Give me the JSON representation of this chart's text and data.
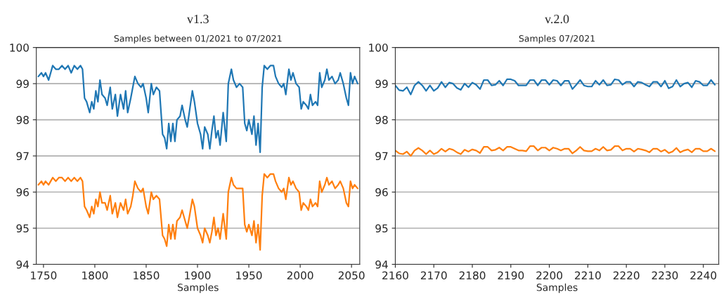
{
  "chart_data": [
    {
      "type": "line",
      "title": "v1.3",
      "subtitle": "Samples between 01/2021 to 07/2021",
      "xlabel": "Samples",
      "x": [
        1745,
        1748,
        1750,
        1752,
        1755,
        1757,
        1759,
        1762,
        1765,
        1768,
        1771,
        1774,
        1777,
        1780,
        1783,
        1786,
        1788,
        1790,
        1792,
        1795,
        1797,
        1799,
        1801,
        1803,
        1805,
        1807,
        1810,
        1812,
        1815,
        1817,
        1820,
        1822,
        1825,
        1828,
        1830,
        1832,
        1835,
        1837,
        1839,
        1842,
        1845,
        1847,
        1850,
        1852,
        1855,
        1857,
        1860,
        1863,
        1866,
        1868,
        1870,
        1872,
        1874,
        1876,
        1878,
        1880,
        1883,
        1885,
        1888,
        1890,
        1892,
        1895,
        1897,
        1900,
        1903,
        1905,
        1907,
        1910,
        1912,
        1914,
        1916,
        1918,
        1920,
        1922,
        1925,
        1928,
        1930,
        1933,
        1935,
        1938,
        1941,
        1944,
        1946,
        1948,
        1950,
        1953,
        1955,
        1957,
        1959,
        1961,
        1963,
        1965,
        1968,
        1971,
        1974,
        1976,
        1979,
        1982,
        1984,
        1986,
        1989,
        1991,
        1993,
        1996,
        1999,
        2001,
        2003,
        2006,
        2008,
        2010,
        2012,
        2015,
        2017,
        2019,
        2021,
        2024,
        2026,
        2028,
        2031,
        2034,
        2037,
        2039,
        2042,
        2045,
        2047,
        2049,
        2051,
        2053,
        2056
      ],
      "series": [
        {
          "color": "#1f77b4",
          "values": [
            99.2,
            99.3,
            99.2,
            99.3,
            99.1,
            99.3,
            99.5,
            99.4,
            99.4,
            99.5,
            99.4,
            99.5,
            99.3,
            99.5,
            99.4,
            99.5,
            99.4,
            98.6,
            98.5,
            98.2,
            98.5,
            98.3,
            98.8,
            98.5,
            99.1,
            98.7,
            98.6,
            98.4,
            98.9,
            98.3,
            98.7,
            98.1,
            98.7,
            98.3,
            98.8,
            98.2,
            98.6,
            98.9,
            99.2,
            99.0,
            98.9,
            99.0,
            98.6,
            98.2,
            99.0,
            98.7,
            98.9,
            98.8,
            97.6,
            97.5,
            97.2,
            97.9,
            97.4,
            97.9,
            97.4,
            98.0,
            98.1,
            98.4,
            98.0,
            97.8,
            98.2,
            98.8,
            98.5,
            97.9,
            97.6,
            97.2,
            97.8,
            97.6,
            97.2,
            97.7,
            98.1,
            97.5,
            97.7,
            97.3,
            98.2,
            97.4,
            99.0,
            99.4,
            99.1,
            98.9,
            99.0,
            98.9,
            97.9,
            97.7,
            98.0,
            97.6,
            98.1,
            97.3,
            97.9,
            97.1,
            98.9,
            99.5,
            99.4,
            99.5,
            99.5,
            99.2,
            99.0,
            98.9,
            99.0,
            98.7,
            99.4,
            99.1,
            99.3,
            99.0,
            98.9,
            98.3,
            98.5,
            98.4,
            98.3,
            98.7,
            98.4,
            98.5,
            98.4,
            99.3,
            98.9,
            99.1,
            99.4,
            99.1,
            99.2,
            99.0,
            99.1,
            99.3,
            99.0,
            98.6,
            98.4,
            99.3,
            99.0,
            99.2,
            99.0
          ]
        },
        {
          "color": "#ff7f0e",
          "values": [
            96.2,
            96.3,
            96.2,
            96.3,
            96.2,
            96.3,
            96.4,
            96.3,
            96.4,
            96.4,
            96.3,
            96.4,
            96.3,
            96.4,
            96.3,
            96.4,
            96.3,
            95.6,
            95.5,
            95.3,
            95.6,
            95.4,
            95.8,
            95.6,
            96.0,
            95.7,
            95.7,
            95.5,
            95.9,
            95.4,
            95.7,
            95.3,
            95.7,
            95.5,
            95.8,
            95.4,
            95.6,
            95.9,
            96.3,
            96.1,
            96.0,
            96.1,
            95.6,
            95.4,
            96.0,
            95.8,
            95.9,
            95.8,
            94.8,
            94.7,
            94.5,
            95.1,
            94.7,
            95.1,
            94.7,
            95.2,
            95.3,
            95.5,
            95.2,
            95.0,
            95.3,
            95.8,
            95.6,
            95.0,
            94.8,
            94.6,
            95.0,
            94.8,
            94.6,
            94.9,
            95.3,
            94.8,
            95.0,
            94.7,
            95.4,
            94.7,
            96.0,
            96.4,
            96.2,
            96.1,
            96.1,
            96.1,
            95.1,
            94.9,
            95.1,
            94.8,
            95.2,
            94.6,
            95.1,
            94.4,
            95.9,
            96.5,
            96.4,
            96.5,
            96.5,
            96.3,
            96.1,
            96.0,
            96.1,
            95.8,
            96.4,
            96.2,
            96.3,
            96.1,
            96.0,
            95.5,
            95.7,
            95.6,
            95.5,
            95.8,
            95.6,
            95.7,
            95.6,
            96.3,
            96.0,
            96.2,
            96.4,
            96.2,
            96.3,
            96.1,
            96.2,
            96.3,
            96.1,
            95.7,
            95.6,
            96.3,
            96.1,
            96.2,
            96.1
          ]
        }
      ],
      "xlim": [
        1743,
        2058
      ],
      "xticks": [
        1750,
        1800,
        1850,
        1900,
        1950,
        2000,
        2050
      ],
      "ylim": [
        94,
        100
      ],
      "yticks": [
        94,
        95,
        96,
        97,
        98,
        99,
        100
      ],
      "grid": "y",
      "marker": "none",
      "line_style": "solid"
    },
    {
      "type": "line",
      "title": "v.2.0",
      "subtitle": "Samples 07/2021",
      "xlabel": "Samples",
      "x": [
        2160,
        2161,
        2162,
        2163,
        2164,
        2165,
        2166,
        2167,
        2168,
        2169,
        2170,
        2171,
        2172,
        2173,
        2174,
        2175,
        2176,
        2177,
        2178,
        2179,
        2180,
        2181,
        2182,
        2183,
        2184,
        2185,
        2186,
        2187,
        2188,
        2189,
        2190,
        2191,
        2192,
        2193,
        2194,
        2195,
        2196,
        2197,
        2198,
        2199,
        2200,
        2201,
        2202,
        2203,
        2204,
        2205,
        2206,
        2207,
        2208,
        2209,
        2210,
        2211,
        2212,
        2213,
        2214,
        2215,
        2216,
        2217,
        2218,
        2219,
        2220,
        2221,
        2222,
        2223,
        2224,
        2225,
        2226,
        2227,
        2228,
        2229,
        2230,
        2231,
        2232,
        2233,
        2234,
        2235,
        2236,
        2237,
        2238,
        2239,
        2240,
        2241,
        2242,
        2243
      ],
      "series": [
        {
          "color": "#1f77b4",
          "values": [
            98.95,
            98.82,
            98.8,
            98.9,
            98.7,
            98.95,
            99.05,
            98.95,
            98.8,
            98.95,
            98.8,
            98.88,
            99.05,
            98.9,
            99.03,
            99.0,
            98.88,
            98.83,
            99.0,
            98.9,
            99.03,
            98.97,
            98.85,
            99.1,
            99.1,
            98.95,
            98.97,
            99.08,
            98.95,
            99.12,
            99.12,
            99.08,
            98.95,
            98.95,
            98.95,
            99.1,
            99.1,
            98.95,
            99.1,
            99.1,
            98.97,
            99.1,
            99.08,
            98.95,
            99.08,
            99.08,
            98.85,
            98.97,
            99.1,
            98.95,
            98.92,
            98.92,
            99.08,
            98.97,
            99.1,
            98.95,
            98.97,
            99.12,
            99.1,
            98.97,
            99.05,
            99.05,
            98.92,
            99.05,
            99.03,
            98.97,
            98.92,
            99.05,
            99.05,
            98.92,
            99.08,
            98.87,
            98.92,
            99.1,
            98.92,
            99.0,
            99.03,
            98.9,
            99.08,
            99.05,
            98.95,
            98.95,
            99.1,
            98.97
          ]
        },
        {
          "color": "#ff7f0e",
          "values": [
            97.15,
            97.07,
            97.05,
            97.12,
            97.0,
            97.15,
            97.22,
            97.15,
            97.05,
            97.15,
            97.05,
            97.1,
            97.2,
            97.12,
            97.2,
            97.17,
            97.1,
            97.05,
            97.17,
            97.12,
            97.18,
            97.15,
            97.08,
            97.25,
            97.25,
            97.15,
            97.17,
            97.23,
            97.15,
            97.25,
            97.25,
            97.2,
            97.15,
            97.15,
            97.13,
            97.27,
            97.27,
            97.15,
            97.23,
            97.23,
            97.15,
            97.23,
            97.2,
            97.15,
            97.2,
            97.2,
            97.07,
            97.15,
            97.25,
            97.15,
            97.13,
            97.13,
            97.2,
            97.15,
            97.25,
            97.15,
            97.17,
            97.27,
            97.27,
            97.15,
            97.2,
            97.2,
            97.12,
            97.2,
            97.18,
            97.15,
            97.1,
            97.2,
            97.2,
            97.12,
            97.17,
            97.08,
            97.12,
            97.22,
            97.1,
            97.15,
            97.18,
            97.1,
            97.2,
            97.2,
            97.13,
            97.13,
            97.2,
            97.13
          ]
        }
      ],
      "xlim": [
        2160,
        2244
      ],
      "xticks": [
        2160,
        2170,
        2180,
        2190,
        2200,
        2210,
        2220,
        2230,
        2240
      ],
      "ylim": [
        94,
        100
      ],
      "yticks": [
        94,
        95,
        96,
        97,
        98,
        99,
        100
      ],
      "grid": "y",
      "marker": "none",
      "line_style": "solid"
    }
  ]
}
